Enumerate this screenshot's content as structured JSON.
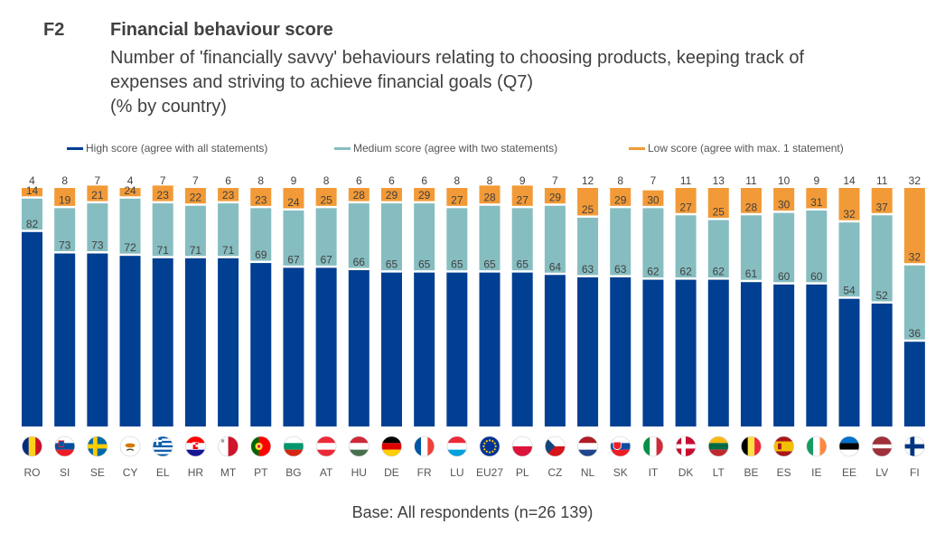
{
  "header": {
    "fig_id": "F2",
    "title": "Financial behaviour score",
    "subtitle_lines": [
      "Number of 'financially savvy' behaviours relating to choosing products, keeping track of",
      "expenses and striving to achieve financial goals (Q7)",
      "(% by country)"
    ]
  },
  "base_note": "Base: All respondents (n=26 139)",
  "colors": {
    "high": "#003F91",
    "medium": "#86BDC0",
    "low": "#F29A37",
    "label": "#404040"
  },
  "chart_data": {
    "type": "bar",
    "stacked": true,
    "title": "Financial behaviour score",
    "xlabel": "",
    "ylabel": "",
    "ylim": [
      0,
      100
    ],
    "categories": [
      "RO",
      "SI",
      "SE",
      "CY",
      "EL",
      "HR",
      "MT",
      "PT",
      "BG",
      "AT",
      "HU",
      "DE",
      "FR",
      "LU",
      "EU27",
      "PL",
      "CZ",
      "NL",
      "SK",
      "IT",
      "DK",
      "LT",
      "BE",
      "ES",
      "IE",
      "EE",
      "LV",
      "FI"
    ],
    "flags": [
      "flag-romania",
      "flag-slovenia",
      "flag-sweden",
      "flag-cyprus",
      "flag-greece",
      "flag-croatia",
      "flag-malta",
      "flag-portugal",
      "flag-bulgaria",
      "flag-austria",
      "flag-hungary",
      "flag-germany",
      "flag-france",
      "flag-luxembourg",
      "flag-eu",
      "flag-poland",
      "flag-czechia",
      "flag-netherlands",
      "flag-slovakia",
      "flag-italy",
      "flag-denmark",
      "flag-lithuania",
      "flag-belgium",
      "flag-spain",
      "flag-ireland",
      "flag-estonia",
      "flag-latvia",
      "flag-finland"
    ],
    "series": [
      {
        "name": "High score (agree with all statements)",
        "values": [
          82,
          73,
          73,
          72,
          71,
          71,
          71,
          69,
          67,
          67,
          66,
          65,
          65,
          65,
          65,
          65,
          64,
          63,
          63,
          62,
          62,
          62,
          61,
          60,
          60,
          54,
          52,
          36
        ]
      },
      {
        "name": "Medium score (agree with two statements)",
        "values": [
          14,
          19,
          21,
          24,
          23,
          22,
          23,
          23,
          24,
          25,
          28,
          29,
          29,
          27,
          28,
          27,
          29,
          25,
          29,
          30,
          27,
          25,
          28,
          30,
          31,
          32,
          37,
          32
        ]
      },
      {
        "name": "Low score (agree with max. 1 statement)",
        "values": [
          4,
          8,
          7,
          4,
          7,
          7,
          6,
          8,
          9,
          8,
          6,
          6,
          6,
          8,
          8,
          9,
          7,
          12,
          8,
          7,
          11,
          13,
          11,
          10,
          9,
          14,
          11,
          32
        ]
      }
    ],
    "legend_position": "top"
  }
}
